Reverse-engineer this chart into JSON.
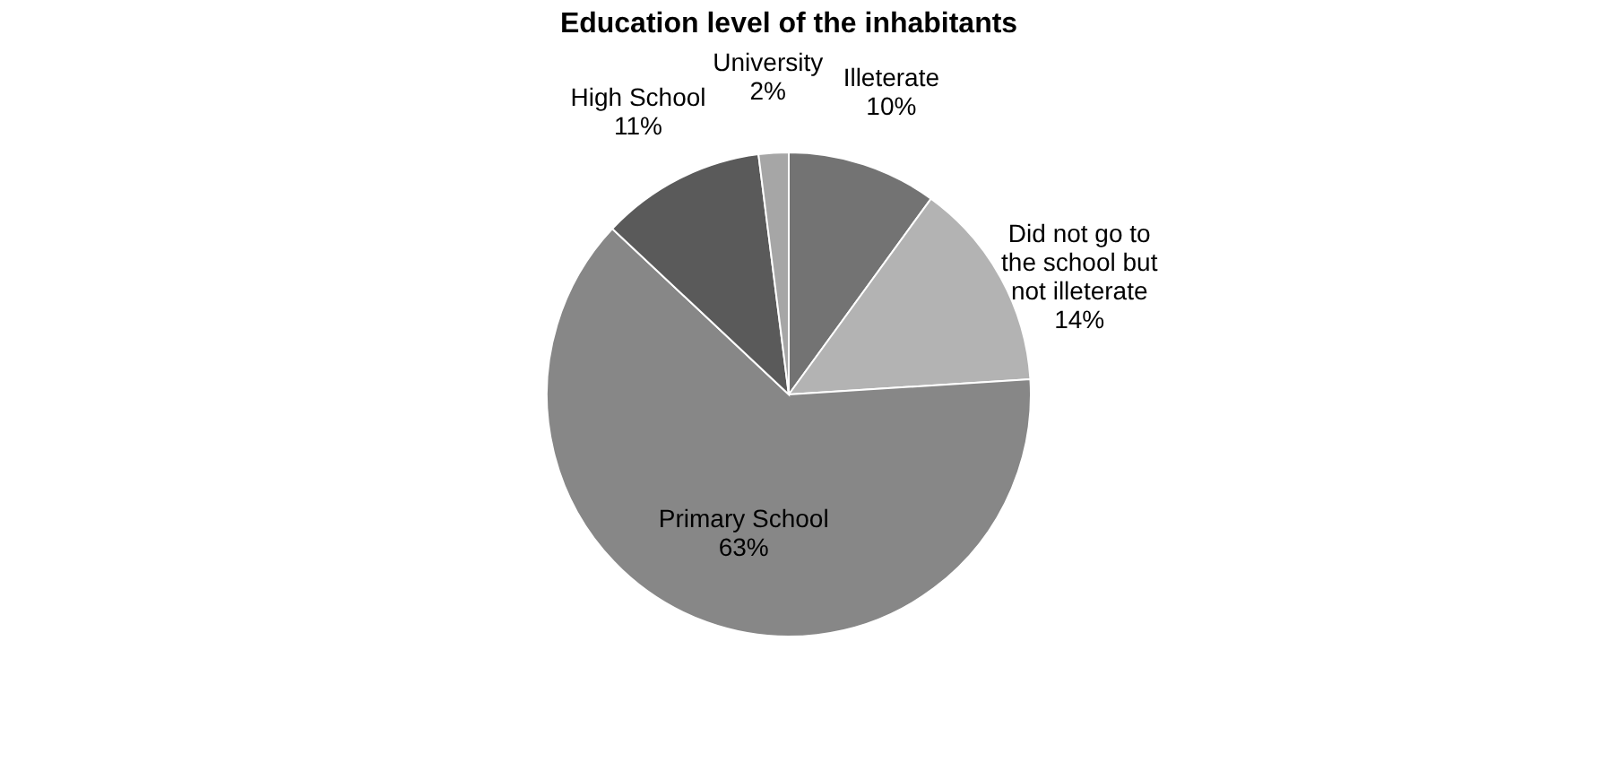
{
  "chart_data": {
    "type": "pie",
    "title": "Education level of the inhabitants",
    "categories": [
      "Illeterate",
      "Did not go to the school but not illeterate",
      "Primary School",
      "High School",
      "University"
    ],
    "values": [
      10,
      14,
      63,
      11,
      2
    ],
    "value_labels": [
      "10%",
      "14%",
      "63%",
      "11%",
      "2%"
    ],
    "colors": [
      "#737373",
      "#b3b3b3",
      "#878787",
      "#5a5a5a",
      "#a6a6a6"
    ],
    "legend": false
  }
}
